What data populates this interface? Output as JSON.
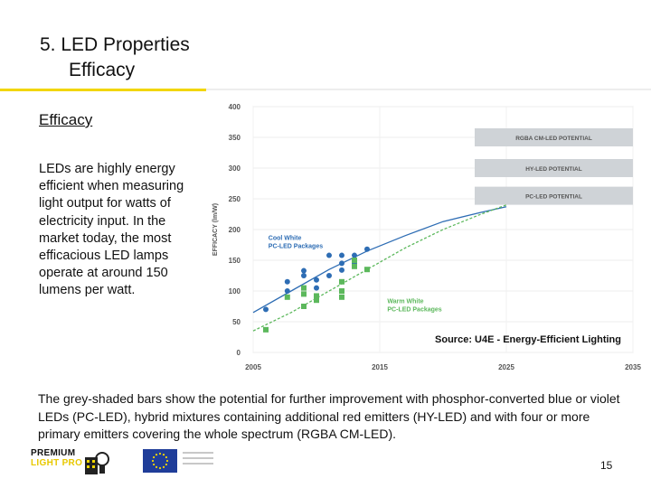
{
  "slide": {
    "title_line1": "5. LED Properties",
    "title_line2": "Efficacy",
    "section_heading": "Efficacy",
    "body_text": "LEDs are highly energy efficient when measuring light output for watts of electricity input. In the market today, the most efficacious LED lamps operate at around 150 lumens per watt.",
    "caption": "The grey-shaded bars show the potential for further improvement with phosphor-converted blue or violet LEDs (PC-LED), hybrid mixtures containing additional red emitters (HY-LED) and with four or more primary emitters covering the whole spectrum (RGBA CM-LED).",
    "page_number": "15",
    "logo_line1": "PREMIUM",
    "logo_line2": "LIGHT PRO",
    "colors": {
      "accent": "#f2d600",
      "cool_white": "#2e6db4",
      "warm_white": "#5cb85c",
      "potential_bar": "#cfd3d7"
    }
  },
  "chart_data": {
    "type": "scatter",
    "ylabel": "EFFICACY (lm/W)",
    "xlim": [
      2005,
      2035
    ],
    "ylim": [
      0,
      400
    ],
    "x_ticks": [
      "2005",
      "2015",
      "2025",
      "2035"
    ],
    "y_ticks": [
      "0",
      "50",
      "100",
      "150",
      "200",
      "250",
      "300",
      "350",
      "400"
    ],
    "potentials": [
      {
        "label": "RGBA CM-LED POTENTIAL",
        "value": 350
      },
      {
        "label": "HY-LED POTENTIAL",
        "value": 300
      },
      {
        "label": "PC-LED POTENTIAL",
        "value": 255
      }
    ],
    "series": [
      {
        "name": "Cool White PC-LED Packages",
        "marker": "circle",
        "color": "#2e6db4",
        "points": [
          [
            2006,
            70
          ],
          [
            2007.7,
            100
          ],
          [
            2007.7,
            115
          ],
          [
            2009,
            125
          ],
          [
            2009,
            133
          ],
          [
            2010,
            105
          ],
          [
            2010,
            118
          ],
          [
            2011,
            158
          ],
          [
            2011,
            125
          ],
          [
            2012,
            158
          ],
          [
            2012,
            134
          ],
          [
            2012,
            145
          ],
          [
            2013,
            158
          ],
          [
            2013,
            145
          ],
          [
            2014,
            168
          ]
        ],
        "trend": [
          [
            2005,
            65
          ],
          [
            2008,
            100
          ],
          [
            2011,
            135
          ],
          [
            2014,
            165
          ],
          [
            2017,
            190
          ],
          [
            2020,
            213
          ],
          [
            2023,
            228
          ],
          [
            2025,
            237
          ]
        ]
      },
      {
        "name": "Warm White PC-LED Packages",
        "marker": "square",
        "color": "#5cb85c",
        "points": [
          [
            2006,
            37
          ],
          [
            2007.7,
            90
          ],
          [
            2009,
            75
          ],
          [
            2009,
            95
          ],
          [
            2009,
            105
          ],
          [
            2010,
            85
          ],
          [
            2010,
            92
          ],
          [
            2012,
            90
          ],
          [
            2012,
            100
          ],
          [
            2012,
            115
          ],
          [
            2013,
            140
          ],
          [
            2013,
            150
          ],
          [
            2014,
            135
          ]
        ],
        "trend": [
          [
            2005,
            35
          ],
          [
            2008,
            65
          ],
          [
            2011,
            100
          ],
          [
            2014,
            135
          ],
          [
            2017,
            170
          ],
          [
            2020,
            200
          ],
          [
            2023,
            225
          ],
          [
            2025,
            240
          ]
        ]
      }
    ],
    "annotations": [
      "Cool White",
      "PC-LED Packages",
      "Warm White",
      "PC-LED Packages"
    ],
    "source": "Source: U4E - Energy-Efficient Lighting"
  }
}
